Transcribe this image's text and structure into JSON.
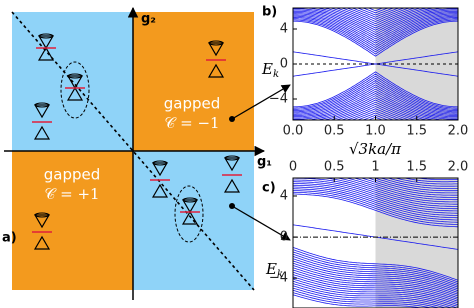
{
  "panel_a": {
    "label": "a)",
    "x_axis": "g₁",
    "y_axis": "g₂",
    "regions": [
      {
        "text": "gapped",
        "invariant": "𝒞 = −1"
      },
      {
        "text": "gapped",
        "invariant": "𝒞 = +1"
      }
    ]
  },
  "panel_b": {
    "label": "b)",
    "ylabel": "E",
    "ylabel_sub": "k",
    "xlabel": "√3ka/π",
    "xlim": [
      0,
      2
    ],
    "ylim": [
      -6.4,
      6.4
    ],
    "xticks": [
      {
        "value": 0,
        "label": "0.0"
      },
      {
        "value": 0.5,
        "label": "0.5"
      },
      {
        "value": 1,
        "label": "1.0"
      },
      {
        "value": 1.5,
        "label": "1.5"
      },
      {
        "value": 2,
        "label": "2.0"
      }
    ],
    "yticks": [
      4,
      0,
      {
        "value": -4,
        "label": "−4"
      }
    ]
  },
  "panel_c": {
    "label": "c)",
    "ylabel": "E",
    "ylabel_sub": "k",
    "xlim": [
      0,
      2
    ],
    "ylim": [
      -6.9,
      5.75
    ],
    "xticks": [
      0,
      0.5,
      1,
      1.5,
      {
        "value": 2,
        "label": "2.0"
      }
    ],
    "yticks": [
      4,
      0,
      {
        "value": -4,
        "label": "−4"
      }
    ]
  }
}
